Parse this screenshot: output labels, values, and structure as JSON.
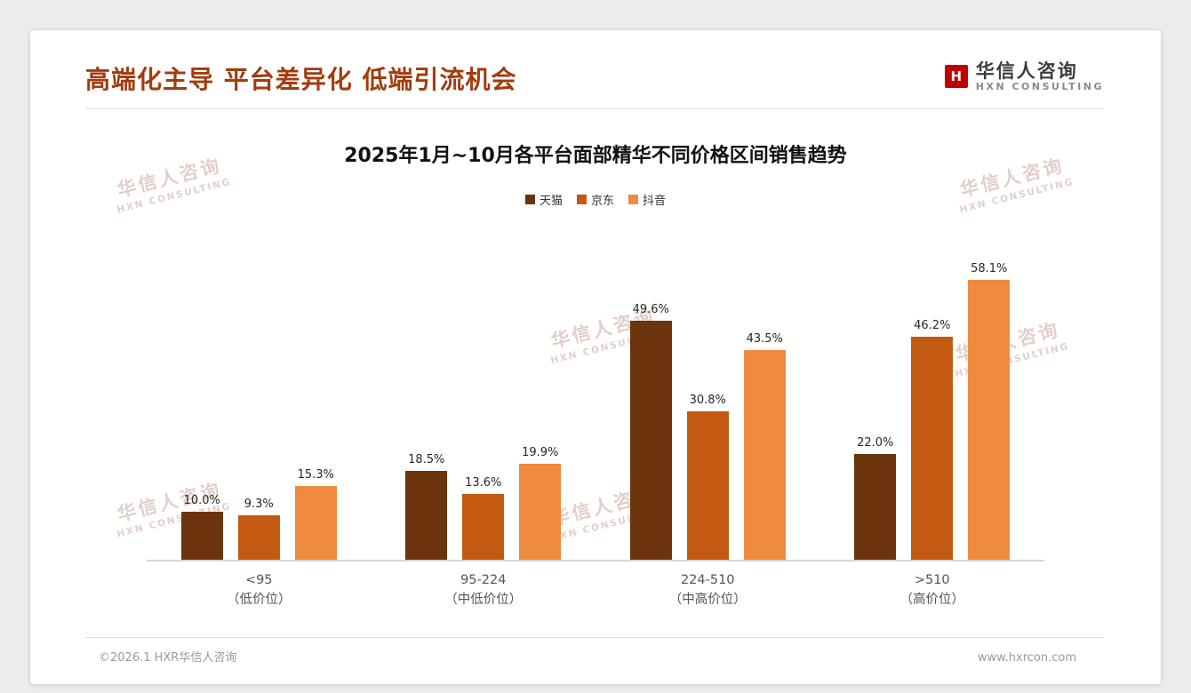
{
  "page": {
    "title": "高端化主导 平台差异化 低端引流机会",
    "logo": {
      "mark": "H",
      "name": "华信人咨询",
      "sub": "HXN CONSULTING"
    },
    "watermark": {
      "line1": "华信人咨询",
      "line2": "HXN CONSULTING"
    },
    "footer": {
      "left": "©2026.1 HXR华信人咨询",
      "right": "www.hxrcon.com"
    }
  },
  "chart_data": {
    "type": "bar",
    "title": "2025年1月~10月各平台面部精华不同价格区间销售趋势",
    "categories": [
      "<95",
      "95-224",
      "224-510",
      ">510"
    ],
    "category_sublabels": [
      "（低价位）",
      "（中低价位）",
      "（中高价位）",
      "（高价位）"
    ],
    "series": [
      {
        "name": "天猫",
        "color": "#6b340d",
        "values": [
          10.0,
          18.5,
          49.6,
          22.0
        ]
      },
      {
        "name": "京东",
        "color": "#c25a11",
        "values": [
          9.3,
          13.6,
          30.8,
          46.2
        ]
      },
      {
        "name": "抖音",
        "color": "#ef8a3f",
        "values": [
          15.3,
          19.9,
          43.5,
          58.1
        ]
      }
    ],
    "value_suffix": "%",
    "ylim": [
      0,
      70
    ],
    "grid": false,
    "legend_position": "top"
  }
}
